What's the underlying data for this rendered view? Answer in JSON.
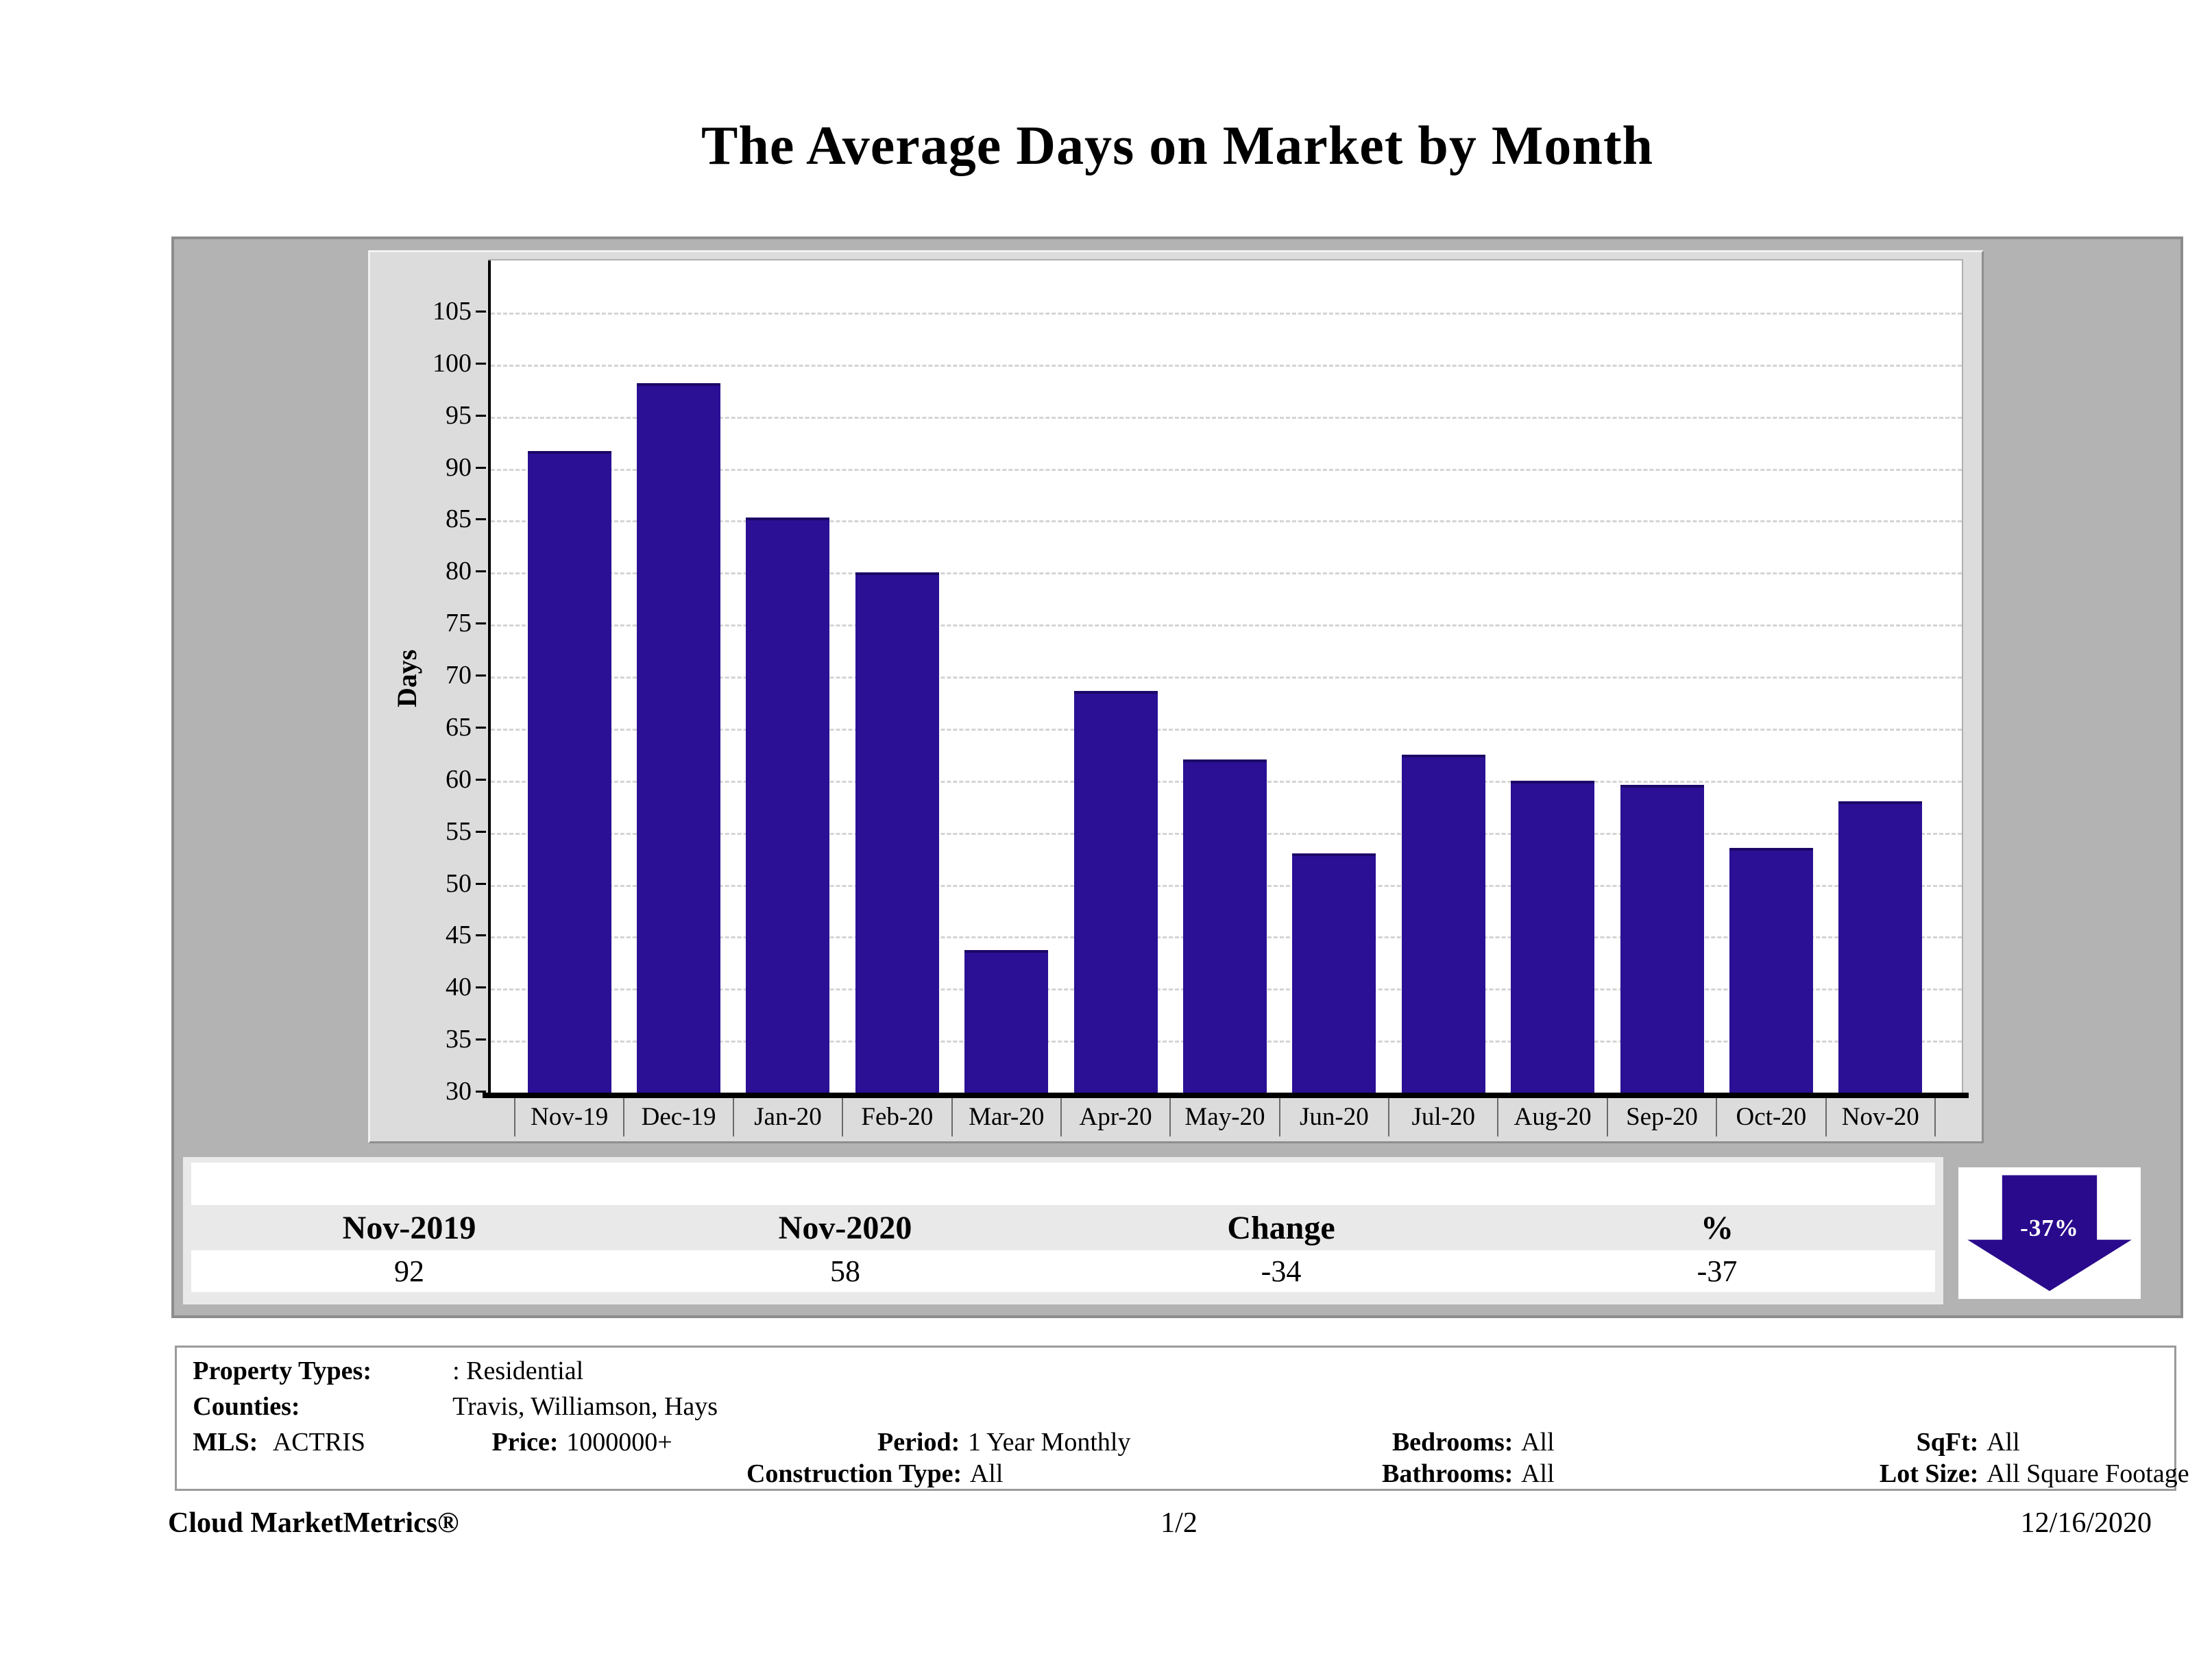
{
  "page": {
    "title": "The Average Days on Market by Month",
    "footer": {
      "brand": "Cloud MarketMetrics®",
      "page_number": "1/2",
      "date": "12/16/2020"
    }
  },
  "chart_data": {
    "type": "bar",
    "title": "The Average Days on Market by Month",
    "xlabel": "",
    "ylabel": "Days",
    "categories": [
      "Nov-19",
      "Dec-19",
      "Jan-20",
      "Feb-20",
      "Mar-20",
      "Apr-20",
      "May-20",
      "Jun-20",
      "Jul-20",
      "Aug-20",
      "Sep-20",
      "Oct-20",
      "Nov-20"
    ],
    "values": [
      91.7,
      98.2,
      85.3,
      80.0,
      43.7,
      68.6,
      62.0,
      53.0,
      62.5,
      60.0,
      59.6,
      53.5,
      58.0
    ],
    "ylim": [
      30,
      110
    ],
    "yticks": [
      30,
      35,
      40,
      45,
      50,
      55,
      60,
      65,
      70,
      75,
      80,
      85,
      90,
      95,
      100,
      105
    ],
    "grid": true,
    "legend": "none",
    "bar_color": "#2b1095"
  },
  "summary_table": {
    "columns": [
      "Nov-2019",
      "Nov-2020",
      "Change",
      "%"
    ],
    "values": [
      "92",
      "58",
      "-34",
      "-37"
    ]
  },
  "trend_arrow": {
    "label": "-37%",
    "direction": "down",
    "color": "#2a0a8c"
  },
  "filters": {
    "rows": [
      [
        {
          "label": "Property Types:",
          "value": ": Residential"
        }
      ],
      [
        {
          "label": "Counties:",
          "value": "Travis, Williamson, Hays"
        }
      ],
      [
        {
          "label": "MLS:",
          "value": "ACTRIS"
        },
        {
          "label": "Price:",
          "value": "1000000+"
        },
        {
          "label": "Period:",
          "value": "1 Year Monthly"
        },
        {
          "label": "Bedrooms:",
          "value": "All"
        },
        {
          "label": "SqFt:",
          "value": "All"
        }
      ],
      [
        {
          "label": "Construction Type:",
          "value": "All"
        },
        {
          "label": "Bathrooms:",
          "value": "All"
        },
        {
          "label": "Lot Size:",
          "value": "All Square Footage"
        }
      ]
    ]
  }
}
